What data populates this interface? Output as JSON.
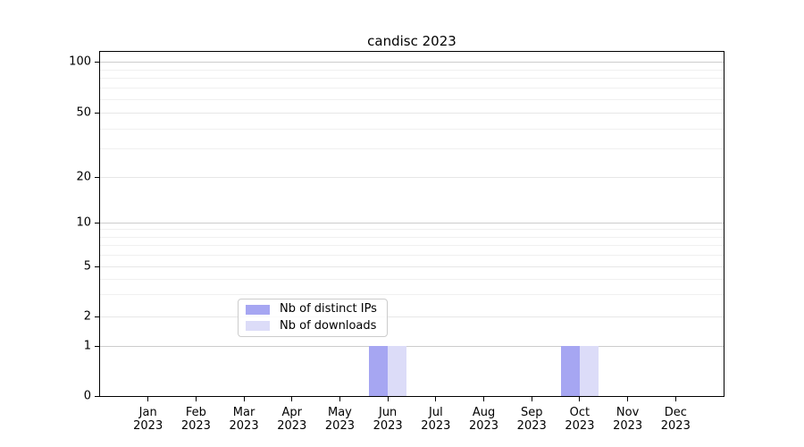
{
  "title": "candisc 2023",
  "chart_data": {
    "type": "bar",
    "title": "candisc 2023",
    "categories": [
      {
        "month": "Jan",
        "year": "2023"
      },
      {
        "month": "Feb",
        "year": "2023"
      },
      {
        "month": "Mar",
        "year": "2023"
      },
      {
        "month": "Apr",
        "year": "2023"
      },
      {
        "month": "May",
        "year": "2023"
      },
      {
        "month": "Jun",
        "year": "2023"
      },
      {
        "month": "Jul",
        "year": "2023"
      },
      {
        "month": "Aug",
        "year": "2023"
      },
      {
        "month": "Sep",
        "year": "2023"
      },
      {
        "month": "Oct",
        "year": "2023"
      },
      {
        "month": "Nov",
        "year": "2023"
      },
      {
        "month": "Dec",
        "year": "2023"
      }
    ],
    "series": [
      {
        "name": "Nb of distinct IPs",
        "color": "#a6a6f2",
        "values": [
          0,
          0,
          0,
          0,
          0,
          1,
          0,
          0,
          0,
          1,
          0,
          0
        ]
      },
      {
        "name": "Nb of downloads",
        "color": "#dcdcf8",
        "values": [
          0,
          0,
          0,
          0,
          0,
          1,
          0,
          0,
          0,
          1,
          0,
          0
        ]
      }
    ],
    "xlabel": "",
    "ylabel": "",
    "yscale": "symlog",
    "ylim": [
      0,
      110
    ],
    "yticks": [
      {
        "value": 0,
        "label": "0"
      },
      {
        "value": 1,
        "label": "1"
      },
      {
        "value": 2,
        "label": "2"
      },
      {
        "value": 5,
        "label": "5"
      },
      {
        "value": 10,
        "label": "10"
      },
      {
        "value": 20,
        "label": "20"
      },
      {
        "value": 50,
        "label": "50"
      },
      {
        "value": 100,
        "label": "100"
      }
    ],
    "major_grid_values": [
      1,
      10,
      100
    ],
    "mid_grid_values": [
      2,
      5,
      20,
      50
    ],
    "minor_grid_values": [
      3,
      4,
      6,
      7,
      8,
      9,
      30,
      40,
      60,
      70,
      80,
      90
    ],
    "grid": {
      "enabled": true,
      "which": "both"
    },
    "legend": {
      "position": "lower center"
    },
    "colors": {
      "major_grid": "#cccccc",
      "mid_grid": "#e7e7e7",
      "minor_grid": "#f0f0f0",
      "axis": "#000000",
      "background": "#ffffff"
    }
  }
}
